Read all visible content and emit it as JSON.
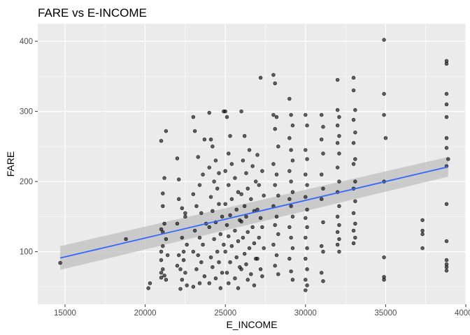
{
  "chart_data": {
    "type": "scatter",
    "title": "FARE vs E-INCOME",
    "xlabel": "E_INCOME",
    "ylabel": "FARE",
    "xlim": [
      13300,
      40000
    ],
    "ylim": [
      25,
      425
    ],
    "xticks": [
      15000,
      20000,
      25000,
      30000,
      35000,
      40000
    ],
    "xtick_labels": [
      "15000",
      "20000",
      "25000",
      "30000",
      "35000",
      "40000"
    ],
    "yticks": [
      100,
      200,
      300,
      400
    ],
    "ytick_labels": [
      "100",
      "200",
      "300",
      "400"
    ],
    "grid": true,
    "legend": "none",
    "colors": {
      "panel": "#ebebeb",
      "grid": "#ffffff",
      "points": "#000000",
      "trend_line": "#3366ff",
      "confidence_band": "#bfbfbf"
    },
    "trend": {
      "method": "linear",
      "x": [
        14700,
        38900
      ],
      "y": [
        91,
        221
      ],
      "band_upper": [
        108,
        235
      ],
      "band_lower": [
        74,
        207
      ]
    },
    "points": [
      [
        14700,
        84
      ],
      [
        18800,
        118
      ],
      [
        20200,
        48
      ],
      [
        20300,
        55
      ],
      [
        21000,
        258
      ],
      [
        21100,
        183
      ],
      [
        21100,
        165
      ],
      [
        21100,
        128
      ],
      [
        21000,
        100
      ],
      [
        21000,
        88
      ],
      [
        21100,
        75
      ],
      [
        21200,
        66
      ],
      [
        21000,
        63
      ],
      [
        21300,
        60
      ],
      [
        21200,
        205
      ],
      [
        21300,
        272
      ],
      [
        21200,
        140
      ],
      [
        21000,
        132
      ],
      [
        21300,
        118
      ],
      [
        21100,
        108
      ],
      [
        21400,
        95
      ],
      [
        21000,
        70
      ],
      [
        22000,
        233
      ],
      [
        22100,
        203
      ],
      [
        22300,
        162
      ],
      [
        22500,
        155
      ],
      [
        22000,
        140
      ],
      [
        22300,
        120
      ],
      [
        22600,
        110
      ],
      [
        22100,
        95
      ],
      [
        22400,
        88
      ],
      [
        22000,
        80
      ],
      [
        22200,
        75
      ],
      [
        22500,
        70
      ],
      [
        22300,
        60
      ],
      [
        22600,
        52
      ],
      [
        22200,
        47
      ],
      [
        22500,
        150
      ],
      [
        22400,
        100
      ],
      [
        22100,
        175
      ],
      [
        23000,
        292
      ],
      [
        23100,
        272
      ],
      [
        23300,
        235
      ],
      [
        23400,
        195
      ],
      [
        23000,
        182
      ],
      [
        23200,
        165
      ],
      [
        23500,
        155
      ],
      [
        23100,
        130
      ],
      [
        23400,
        120
      ],
      [
        23600,
        110
      ],
      [
        23000,
        100
      ],
      [
        23300,
        95
      ],
      [
        23500,
        85
      ],
      [
        23200,
        75
      ],
      [
        23700,
        65
      ],
      [
        23400,
        55
      ],
      [
        23000,
        50
      ],
      [
        23700,
        260
      ],
      [
        23600,
        210
      ],
      [
        23800,
        140
      ],
      [
        24000,
        298
      ],
      [
        24100,
        260
      ],
      [
        24200,
        250
      ],
      [
        24400,
        230
      ],
      [
        24000,
        220
      ],
      [
        24300,
        200
      ],
      [
        24500,
        190
      ],
      [
        24100,
        178
      ],
      [
        24600,
        168
      ],
      [
        24200,
        158
      ],
      [
        24800,
        150
      ],
      [
        24400,
        142
      ],
      [
        24000,
        135
      ],
      [
        24700,
        125
      ],
      [
        24300,
        118
      ],
      [
        24900,
        110
      ],
      [
        24500,
        100
      ],
      [
        24100,
        92
      ],
      [
        24600,
        85
      ],
      [
        24200,
        78
      ],
      [
        24800,
        70
      ],
      [
        24400,
        62
      ],
      [
        24000,
        55
      ],
      [
        24700,
        48
      ],
      [
        24900,
        300
      ],
      [
        24600,
        212
      ],
      [
        25000,
        300
      ],
      [
        25100,
        292
      ],
      [
        25300,
        265
      ],
      [
        25200,
        240
      ],
      [
        25400,
        225
      ],
      [
        25000,
        215
      ],
      [
        25600,
        205
      ],
      [
        25200,
        195
      ],
      [
        25800,
        185
      ],
      [
        25400,
        175
      ],
      [
        25000,
        168
      ],
      [
        25700,
        160
      ],
      [
        25300,
        152
      ],
      [
        25900,
        145
      ],
      [
        25100,
        138
      ],
      [
        25600,
        130
      ],
      [
        25200,
        122
      ],
      [
        25800,
        115
      ],
      [
        25400,
        108
      ],
      [
        25000,
        100
      ],
      [
        25700,
        92
      ],
      [
        25300,
        85
      ],
      [
        25900,
        78
      ],
      [
        25100,
        70
      ],
      [
        25600,
        62
      ],
      [
        25200,
        55
      ],
      [
        25800,
        48
      ],
      [
        26000,
        300
      ],
      [
        26200,
        265
      ],
      [
        26500,
        245
      ],
      [
        26100,
        230
      ],
      [
        26700,
        222
      ],
      [
        26300,
        212
      ],
      [
        26900,
        200
      ],
      [
        26400,
        190
      ],
      [
        26000,
        182
      ],
      [
        26600,
        175
      ],
      [
        26200,
        165
      ],
      [
        26800,
        158
      ],
      [
        26300,
        150
      ],
      [
        26000,
        143
      ],
      [
        26700,
        135
      ],
      [
        26400,
        128
      ],
      [
        26100,
        120
      ],
      [
        26800,
        112
      ],
      [
        26500,
        105
      ],
      [
        26200,
        97
      ],
      [
        26900,
        90
      ],
      [
        26300,
        82
      ],
      [
        26000,
        75
      ],
      [
        26600,
        68
      ],
      [
        26400,
        60
      ],
      [
        26800,
        52
      ],
      [
        27000,
        238
      ],
      [
        27200,
        348
      ],
      [
        27300,
        215
      ],
      [
        27100,
        195
      ],
      [
        27400,
        180
      ],
      [
        27000,
        160
      ],
      [
        27200,
        148
      ],
      [
        27300,
        135
      ],
      [
        27100,
        120
      ],
      [
        27400,
        105
      ],
      [
        27000,
        90
      ],
      [
        27200,
        75
      ],
      [
        27300,
        65
      ],
      [
        28000,
        352
      ],
      [
        28100,
        340
      ],
      [
        28000,
        295
      ],
      [
        28200,
        292
      ],
      [
        28100,
        275
      ],
      [
        28300,
        250
      ],
      [
        28000,
        225
      ],
      [
        28200,
        210
      ],
      [
        28100,
        195
      ],
      [
        28300,
        180
      ],
      [
        28000,
        165
      ],
      [
        28200,
        150
      ],
      [
        28100,
        138
      ],
      [
        28300,
        125
      ],
      [
        28000,
        110
      ],
      [
        28200,
        95
      ],
      [
        28100,
        80
      ],
      [
        28300,
        68
      ],
      [
        29000,
        318
      ],
      [
        29100,
        295
      ],
      [
        29200,
        280
      ],
      [
        29000,
        262
      ],
      [
        29100,
        245
      ],
      [
        29200,
        230
      ],
      [
        29000,
        215
      ],
      [
        29100,
        200
      ],
      [
        29200,
        185
      ],
      [
        29000,
        175
      ],
      [
        29100,
        165
      ],
      [
        29200,
        150
      ],
      [
        29000,
        135
      ],
      [
        29100,
        120
      ],
      [
        29200,
        105
      ],
      [
        29000,
        90
      ],
      [
        29100,
        72
      ],
      [
        29200,
        60
      ],
      [
        30000,
        295
      ],
      [
        30100,
        280
      ],
      [
        30000,
        245
      ],
      [
        30100,
        232
      ],
      [
        30000,
        210
      ],
      [
        30100,
        195
      ],
      [
        30000,
        178
      ],
      [
        30100,
        160
      ],
      [
        30000,
        148
      ],
      [
        30100,
        135
      ],
      [
        30000,
        120
      ],
      [
        30100,
        105
      ],
      [
        30000,
        90
      ],
      [
        30100,
        75
      ],
      [
        30000,
        60
      ],
      [
        30100,
        52
      ],
      [
        30000,
        45
      ],
      [
        31000,
        295
      ],
      [
        31100,
        278
      ],
      [
        31000,
        260
      ],
      [
        31100,
        240
      ],
      [
        31000,
        210
      ],
      [
        31100,
        190
      ],
      [
        31000,
        175
      ],
      [
        31100,
        142
      ],
      [
        31000,
        108
      ],
      [
        31100,
        100
      ],
      [
        31000,
        70
      ],
      [
        31100,
        58
      ],
      [
        32000,
        345
      ],
      [
        32000,
        302
      ],
      [
        32100,
        292
      ],
      [
        32000,
        280
      ],
      [
        32100,
        265
      ],
      [
        32000,
        255
      ],
      [
        32100,
        240
      ],
      [
        32000,
        220
      ],
      [
        32100,
        200
      ],
      [
        32000,
        185
      ],
      [
        32100,
        165
      ],
      [
        32000,
        150
      ],
      [
        32100,
        138
      ],
      [
        32000,
        128
      ],
      [
        32100,
        118
      ],
      [
        32000,
        110
      ],
      [
        32100,
        100
      ],
      [
        33000,
        348
      ],
      [
        33000,
        330
      ],
      [
        33100,
        302
      ],
      [
        33000,
        288
      ],
      [
        33100,
        270
      ],
      [
        33000,
        255
      ],
      [
        33100,
        232
      ],
      [
        33000,
        225
      ],
      [
        33100,
        200
      ],
      [
        33000,
        190
      ],
      [
        33100,
        172
      ],
      [
        33000,
        155
      ],
      [
        33100,
        140
      ],
      [
        33000,
        130
      ],
      [
        33100,
        120
      ],
      [
        33000,
        112
      ],
      [
        34900,
        402
      ],
      [
        34900,
        325
      ],
      [
        34900,
        295
      ],
      [
        35000,
        262
      ],
      [
        34900,
        200
      ],
      [
        34900,
        92
      ],
      [
        34900,
        64
      ],
      [
        34900,
        60
      ],
      [
        37300,
        145
      ],
      [
        37300,
        130
      ],
      [
        37300,
        125
      ],
      [
        37300,
        105
      ],
      [
        38800,
        372
      ],
      [
        38800,
        368
      ],
      [
        38800,
        325
      ],
      [
        38800,
        310
      ],
      [
        38800,
        292
      ],
      [
        38800,
        262
      ],
      [
        38800,
        248
      ],
      [
        38900,
        232
      ],
      [
        38800,
        222
      ],
      [
        38800,
        168
      ],
      [
        38800,
        115
      ],
      [
        38800,
        88
      ],
      [
        38800,
        82
      ],
      [
        38800,
        78
      ],
      [
        38800,
        73
      ]
    ]
  }
}
